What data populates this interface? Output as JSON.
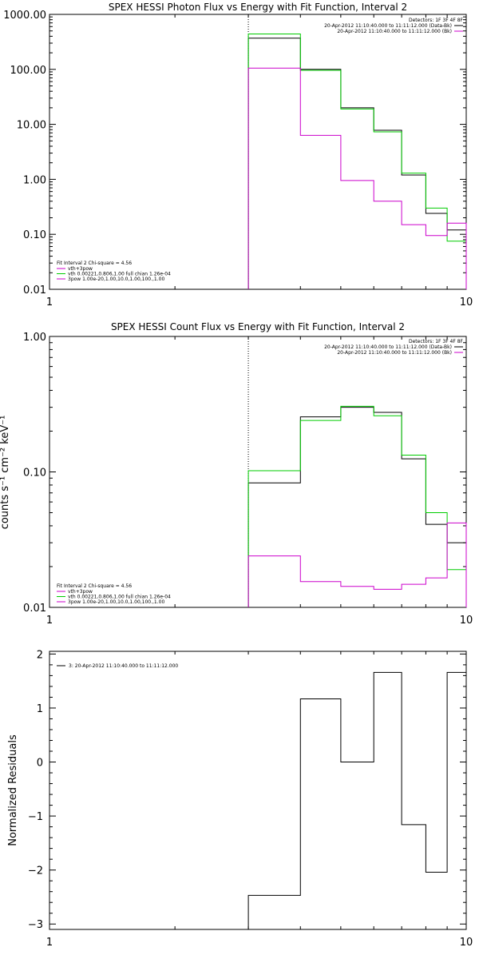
{
  "chart_data": [
    {
      "type": "line",
      "title": "SPEX HESSI Photon Flux vs Energy with Fit Function, Interval 2",
      "ylabel": "",
      "xscale": "log",
      "yscale": "log",
      "xlim": [
        1,
        10
      ],
      "ylim": [
        0.01,
        1000
      ],
      "xticks": [
        "1",
        "10"
      ],
      "yticks": [
        "1000.00",
        "100.00",
        "10.00",
        "1.00",
        "0.10",
        "0.01"
      ],
      "vline_x": 3,
      "detectors": "Detectors: 1F 3F 4F 8F",
      "legend_top": [
        {
          "text": "20-Apr-2012 11:10:40.000 to 11:11:12.000 (Data-Bk)",
          "color": "#000000"
        },
        {
          "text": "20-Apr-2012 11:10:40.000 to 11:11:12.000 (Bk)",
          "color": "#cc00cc"
        }
      ],
      "fit_info": "Fit Interval 2   Chi-square = 4.56",
      "legend_bottom": [
        {
          "text": "vth+3pow",
          "color": "#cc00cc"
        },
        {
          "text": "vth 0.00221,0.806,1.00   full chian 1.26e-04",
          "color": "#00cc00"
        },
        {
          "text": "3pow 1.00e-20,1.00,10.0,1.00,100.,1.00",
          "color": "#cc00cc"
        }
      ],
      "edges": [
        3,
        4,
        5,
        6,
        7,
        8,
        9,
        10
      ],
      "series": [
        {
          "color": "#000000",
          "values": [
            370,
            100,
            20,
            7.8,
            1.2,
            0.24,
            0.12
          ]
        },
        {
          "color": "#00cc00",
          "values": [
            440,
            96,
            19,
            7.3,
            1.3,
            0.3,
            0.075
          ]
        },
        {
          "color": "#cc00cc",
          "values": [
            105,
            6.3,
            0.95,
            0.4,
            0.15,
            0.095,
            0.16
          ]
        }
      ]
    },
    {
      "type": "line",
      "title": "SPEX HESSI Count Flux vs Energy with Fit Function, Interval 2",
      "ylabel": "counts s⁻¹ cm⁻² keV⁻¹",
      "xscale": "log",
      "yscale": "log",
      "xlim": [
        1,
        10
      ],
      "ylim": [
        0.01,
        1.0
      ],
      "xticks": [
        "1",
        "10"
      ],
      "yticks": [
        "1.00",
        "0.10",
        "0.01"
      ],
      "vline_x": 3,
      "detectors": "Detectors: 1F 3F 4F 8F",
      "legend_top": [
        {
          "text": "20-Apr-2012 11:10:40.000 to 11:11:12.000 (Data-Bk)",
          "color": "#000000"
        },
        {
          "text": "20-Apr-2012 11:10:40.000 to 11:11:12.000 (Bk)",
          "color": "#cc00cc"
        }
      ],
      "fit_info": "Fit Interval 2   Chi-square = 4.56",
      "legend_bottom": [
        {
          "text": "vth+3pow",
          "color": "#cc00cc"
        },
        {
          "text": "vth 0.00221,0.806,1.00   full chian 1.26e-04",
          "color": "#00cc00"
        },
        {
          "text": "3pow 1.00e-20,1.00,10.0,1.00,100.,1.00",
          "color": "#cc00cc"
        }
      ],
      "edges": [
        3,
        4,
        5,
        6,
        7,
        8,
        9,
        10
      ],
      "series": [
        {
          "color": "#000000",
          "values": [
            0.083,
            0.255,
            0.3,
            0.275,
            0.125,
            0.041,
            0.03
          ]
        },
        {
          "color": "#00cc00",
          "values": [
            0.102,
            0.24,
            0.305,
            0.26,
            0.133,
            0.05,
            0.019
          ]
        },
        {
          "color": "#cc00cc",
          "values": [
            0.024,
            0.0155,
            0.0143,
            0.0136,
            0.0148,
            0.0165,
            0.042
          ]
        }
      ]
    },
    {
      "type": "line",
      "title": "",
      "ylabel": "Normalized Residuals",
      "xscale": "log",
      "yscale": "linear",
      "xlim": [
        1,
        10
      ],
      "ylim": [
        -3.1,
        2.05
      ],
      "xticks": [
        "1",
        "10"
      ],
      "yticks": [
        "2",
        "1",
        "0",
        "−1",
        "−2",
        "−3"
      ],
      "ytick_values": [
        2,
        1,
        0,
        -1,
        -2,
        -3
      ],
      "legend_top_left": {
        "text": "3: 20-Apr-2012 11:10:40.000 to 11:11:12.000",
        "color": "#000000"
      },
      "edges": [
        3,
        4,
        5,
        6,
        7,
        8,
        9,
        10
      ],
      "series": [
        {
          "color": "#000000",
          "values": [
            -2.47,
            1.17,
            0.0,
            1.66,
            -1.16,
            -2.04,
            1.66
          ]
        }
      ]
    }
  ]
}
